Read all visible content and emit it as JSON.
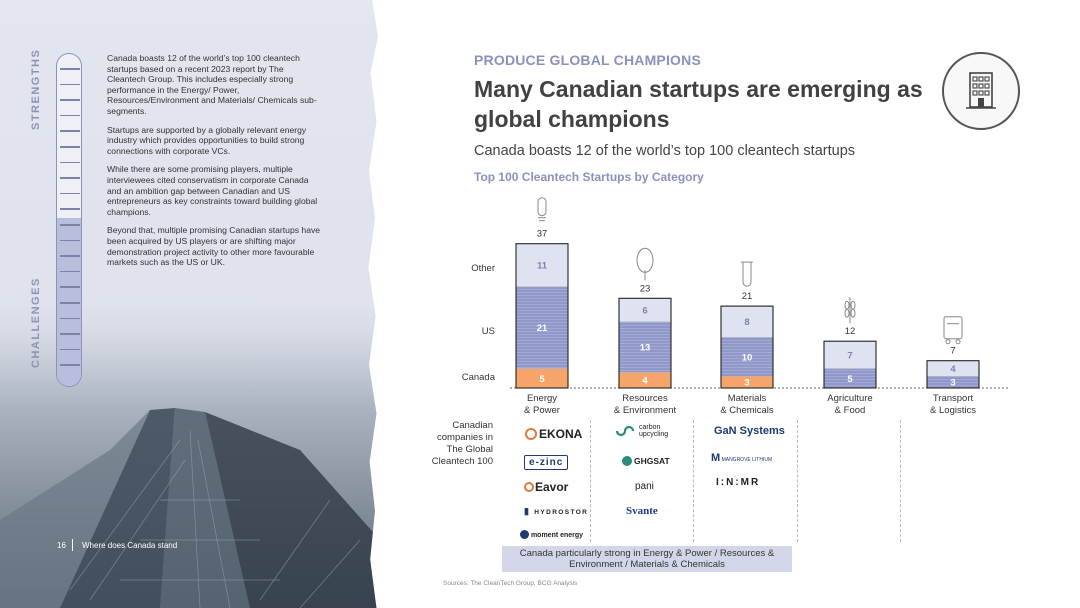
{
  "left": {
    "strengths_label": "STRENGTHS",
    "challenges_label": "CHALLENGES",
    "paragraphs": [
      "Canada boasts 12 of the world’s top 100 cleantech startups based on a recent 2023 report by The Cleantech Group. This includes especially strong performance in the Energy/ Power, Resources/Environment and Materials/ Chemicals sub-segments.",
      "Startups are supported by a globally relevant energy industry which provides opportunities to build strong connections with corporate VCs.",
      "While there are some promising players, multiple interviewees cited conservatism in corporate Canada and an ambition gap between Canadian and US entrepreneurs as key constraints toward building global champions.",
      "Beyond that, multiple promising Canadian startups have been acquired by US players or are shifting major demonstration project activity to other more favourable markets such as the US or UK."
    ],
    "footer_page": "16",
    "footer_text": "Where does Canada stand"
  },
  "header": {
    "kicker": "PRODUCE GLOBAL CHAMPIONS",
    "title": "Many Canadian startups are emerging as global champions",
    "subtitle": "Canada boasts 12 of the world’s top 100 cleantech startups",
    "icon": "building-icon"
  },
  "chart_title": "Top 100 Cleantech Startups by Category",
  "chart_data": {
    "type": "bar",
    "stacked": true,
    "categories": [
      "Energy\n& Power",
      "Resources\n& Environment",
      "Materials\n& Chemicals",
      "Agriculture\n& Food",
      "Transport\n& Logistics"
    ],
    "series": [
      {
        "name": "Canada",
        "values": [
          5,
          4,
          3,
          0,
          0
        ]
      },
      {
        "name": "US",
        "values": [
          21,
          13,
          10,
          5,
          3
        ]
      },
      {
        "name": "Other",
        "values": [
          11,
          6,
          8,
          7,
          4
        ]
      }
    ],
    "totals": [
      37,
      23,
      21,
      12,
      7
    ],
    "category_icons": [
      "lightbulb-icon",
      "tree-icon",
      "test-tube-icon",
      "wheat-icon",
      "truck-icon"
    ],
    "colors": {
      "Canada": "#f7a46a",
      "US": "#8f98c9",
      "Other": "#dfe2f0",
      "outline": "#222222"
    }
  },
  "logos": {
    "row_label": "Canadian companies in The Global Cleantech 100",
    "energy": [
      "EKONA",
      "e-zinc",
      "Eavor",
      "HYDROSTOR",
      "moment energy"
    ],
    "resources": [
      "carbon upcycling",
      "GHGSAT",
      "pani",
      "Svante"
    ],
    "materials": [
      "GaN Systems",
      "MANGROVE LITHIUM",
      "I:N:MR"
    ]
  },
  "callout": "Canada particularly strong in Energy & Power / Resources & Environment / Materials & Chemicals",
  "source": "Sources: The CleanTech Group, BCG Analysis"
}
